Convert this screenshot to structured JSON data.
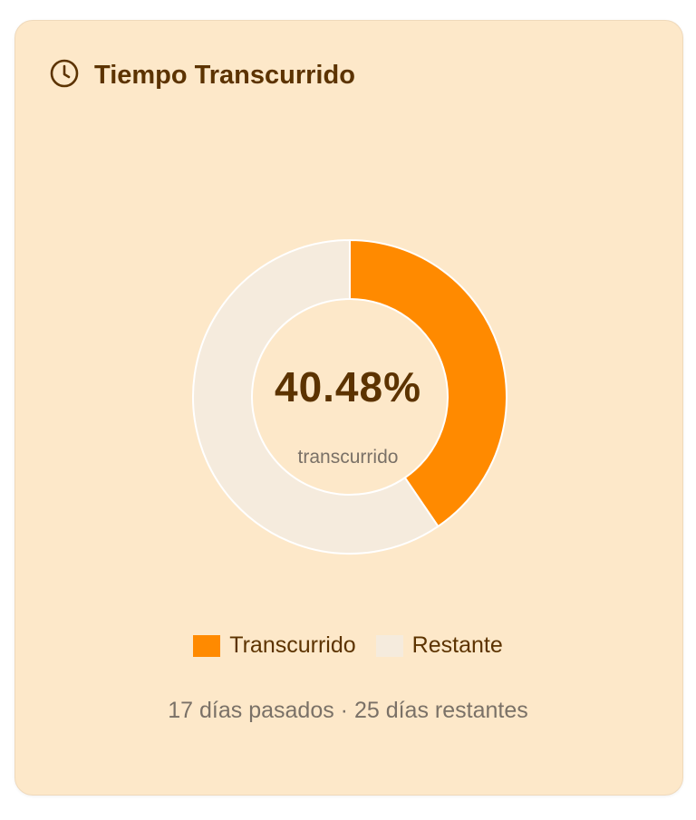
{
  "card": {
    "title": "Tiempo Transcurrido",
    "icon": "clock-icon"
  },
  "chart_data": {
    "type": "pie",
    "variant": "doughnut",
    "categories": [
      "Transcurrido",
      "Restante"
    ],
    "values": [
      40.48,
      59.52
    ],
    "colors": [
      "#ff8a00",
      "#f5ebdd"
    ],
    "legend_position": "bottom",
    "center_value": "40.48%",
    "center_label": "transcurrido"
  },
  "footer": {
    "text": "17 días pasados · 25 días restantes"
  }
}
